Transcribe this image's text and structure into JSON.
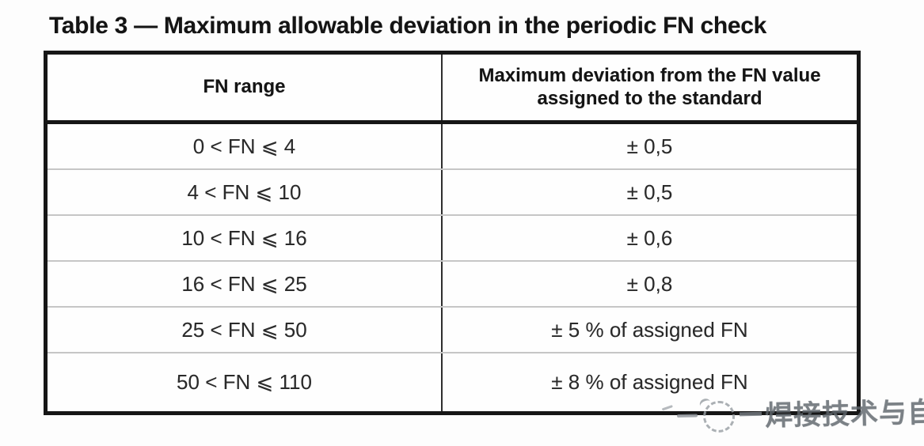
{
  "title": "Table 3 — Maximum allowable deviation in the periodic FN check",
  "table": {
    "columns": [
      "FN range",
      "Maximum deviation from the FN value assigned to the standard"
    ],
    "rows": [
      {
        "range": "0 < FN ⩽ 4",
        "deviation": "± 0,5"
      },
      {
        "range": "4 < FN ⩽ 10",
        "deviation": "± 0,5"
      },
      {
        "range": "10 < FN ⩽ 16",
        "deviation": "± 0,6"
      },
      {
        "range": "16 < FN ⩽ 25",
        "deviation": "± 0,8"
      },
      {
        "range": "25 < FN ⩽ 50",
        "deviation": "± 5 % of assigned FN"
      },
      {
        "range": "50 < FN ⩽ 110",
        "deviation": "± 8 % of assigned FN"
      }
    ]
  },
  "watermark": {
    "text": "焊接技术与自动化",
    "logo": "dashed-circle-logo",
    "color": "#5f666c"
  },
  "colors": {
    "outer_border": "#161616",
    "column_divider": "#2e2e2e",
    "row_separator": "#c6c6c6",
    "text": "#2a2a2a",
    "background": "#fdfdfd"
  }
}
